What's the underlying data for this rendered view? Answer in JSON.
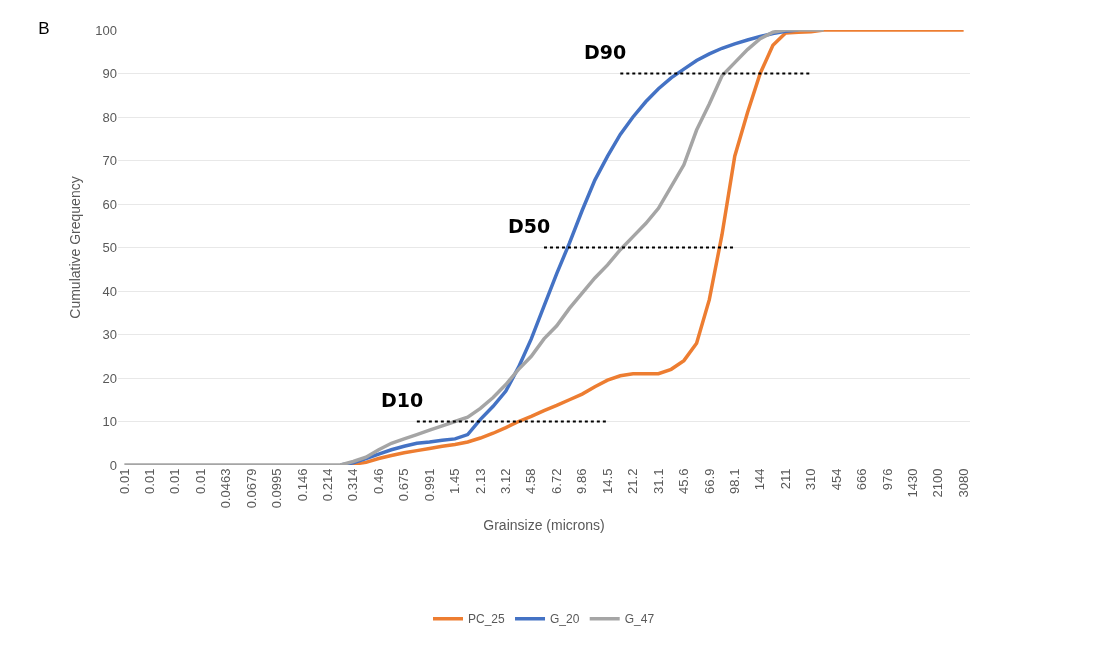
{
  "chart_data": {
    "type": "line",
    "title": "B",
    "xlabel": "Grainsize (microns)",
    "ylabel": "Cumulative Grequency",
    "categories": [
      "0.01",
      null,
      "0.01",
      null,
      "0.01",
      null,
      "0.01",
      null,
      "0.0463",
      null,
      "0.0679",
      null,
      "0.0995",
      null,
      "0.146",
      null,
      "0.214",
      null,
      "0.314",
      null,
      "0.46",
      null,
      "0.675",
      null,
      "0.991",
      null,
      "1.45",
      null,
      "2.13",
      null,
      "3.12",
      null,
      "4.58",
      null,
      "6.72",
      null,
      "9.86",
      null,
      "14.5",
      null,
      "21.2",
      null,
      "31.1",
      null,
      "45.6",
      null,
      "66.9",
      null,
      "98.1",
      null,
      "144",
      null,
      "211",
      null,
      "310",
      null,
      "454",
      null,
      "666",
      null,
      "976",
      null,
      "1430",
      null,
      "2100",
      null,
      "3080"
    ],
    "series": [
      {
        "name": "PC_25",
        "color": "#ed7d31",
        "values": [
          null,
          null,
          null,
          null,
          null,
          null,
          null,
          null,
          null,
          null,
          null,
          null,
          null,
          null,
          null,
          null,
          null,
          0,
          0.2,
          0.6,
          1.5,
          2.2,
          2.8,
          3.3,
          3.8,
          4.3,
          4.7,
          5.3,
          6.2,
          7.3,
          8.6,
          10,
          11.2,
          12.5,
          13.7,
          15,
          16.3,
          18,
          19.5,
          20.5,
          21,
          21,
          21,
          22,
          24,
          28,
          38,
          53,
          71,
          81,
          90,
          96.5,
          99.3,
          99.5,
          99.6,
          100,
          100,
          100,
          100,
          100,
          100,
          100,
          100,
          100,
          100,
          100,
          100
        ]
      },
      {
        "name": "G_20",
        "color": "#4472c4",
        "values": [
          null,
          null,
          null,
          null,
          null,
          null,
          null,
          null,
          null,
          null,
          null,
          null,
          null,
          null,
          null,
          null,
          null,
          0,
          0.5,
          1.5,
          2.5,
          3.5,
          4.3,
          5,
          5.3,
          5.7,
          6,
          7,
          10.5,
          13.5,
          17,
          22.5,
          29,
          36.5,
          44,
          51,
          58.5,
          65.5,
          71,
          76,
          80,
          83.5,
          86.5,
          89,
          91,
          93,
          94.5,
          95.8,
          96.8,
          97.7,
          98.5,
          99.2,
          99.7,
          100,
          null,
          null,
          null,
          null,
          null,
          null,
          null,
          null,
          null,
          null,
          null,
          null,
          null
        ]
      },
      {
        "name": "G_47",
        "color": "#a5a5a5",
        "values": [
          0,
          0,
          0,
          0,
          0,
          0,
          0,
          0,
          0,
          0,
          0,
          0,
          0,
          0,
          0,
          0,
          0,
          0,
          0.8,
          1.8,
          3.5,
          5,
          6,
          7,
          8,
          9,
          10,
          11,
          13,
          15.5,
          18.5,
          22,
          25,
          29,
          32,
          36,
          39.5,
          43,
          46,
          49.5,
          52.5,
          55.5,
          59,
          64,
          69,
          77,
          83,
          89.5,
          92.5,
          95.5,
          98,
          99.5,
          100,
          100,
          100,
          100,
          null,
          null,
          null,
          null,
          null,
          null,
          null,
          null,
          null,
          null,
          null
        ]
      },
      {
        "color": "#000000",
        "line_style": "dotted",
        "values": [
          null,
          null,
          null,
          null,
          null,
          null,
          null,
          null,
          null,
          null,
          null,
          null,
          null,
          null,
          null,
          null,
          null,
          null,
          null,
          null,
          null,
          null,
          null,
          10,
          10,
          10,
          10,
          10,
          10,
          10,
          10,
          10,
          10,
          10,
          10,
          10,
          10,
          10,
          10,
          null,
          null,
          null,
          null,
          null,
          null,
          null,
          null,
          null,
          null,
          null,
          null,
          null,
          null,
          null,
          null,
          null,
          null,
          null,
          null,
          null,
          null,
          null,
          null,
          null,
          null,
          null,
          null
        ]
      },
      {
        "color": "#000000",
        "line_style": "dotted",
        "values": [
          null,
          null,
          null,
          null,
          null,
          null,
          null,
          null,
          null,
          null,
          null,
          null,
          null,
          null,
          null,
          null,
          null,
          null,
          null,
          null,
          null,
          null,
          null,
          null,
          null,
          null,
          null,
          null,
          null,
          null,
          null,
          null,
          null,
          50,
          50,
          50,
          50,
          50,
          50,
          50,
          50,
          50,
          50,
          50,
          50,
          50,
          50,
          50,
          50,
          null,
          null,
          null,
          null,
          null,
          null,
          null,
          null,
          null,
          null,
          null,
          null,
          null,
          null,
          null,
          null,
          null,
          null
        ]
      },
      {
        "color": "#000000",
        "line_style": "dotted",
        "values": [
          null,
          null,
          null,
          null,
          null,
          null,
          null,
          null,
          null,
          null,
          null,
          null,
          null,
          null,
          null,
          null,
          null,
          null,
          null,
          null,
          null,
          null,
          null,
          null,
          null,
          null,
          null,
          null,
          null,
          null,
          null,
          null,
          null,
          null,
          null,
          null,
          null,
          null,
          null,
          90,
          90,
          90,
          90,
          90,
          90,
          90,
          90,
          90,
          90,
          90,
          90,
          90,
          90,
          90,
          90,
          null,
          null,
          null,
          null,
          null,
          null,
          null,
          null,
          null,
          null,
          null,
          null
        ]
      }
    ],
    "annotations": [
      "D10",
      "D50",
      "D90"
    ],
    "ylim": [
      0,
      100
    ],
    "yticks": [
      0,
      10,
      20,
      30,
      40,
      50,
      60,
      70,
      80,
      90,
      100
    ],
    "grid": "y",
    "legend": "bottom",
    "marker": "none",
    "line_style": "solid"
  }
}
